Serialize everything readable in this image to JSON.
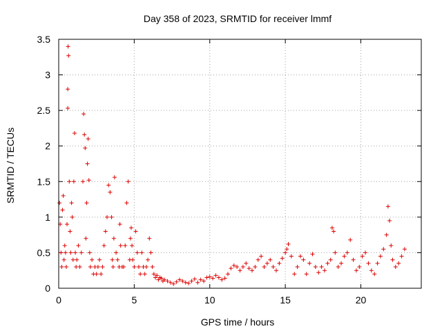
{
  "chart_data": {
    "type": "scatter",
    "title": "Day 358 of 2023, SRMTID for receiver lmmf",
    "xlabel": "GPS time / hours",
    "ylabel": "SRMTID / TECUs",
    "xlim": [
      0,
      24
    ],
    "ylim": [
      0,
      3.5
    ],
    "xticks": [
      0,
      5,
      10,
      15,
      20
    ],
    "yticks": [
      0,
      0.5,
      1,
      1.5,
      2,
      2.5,
      3,
      3.5
    ],
    "xtick_labels": [
      "0",
      "5",
      "10",
      "15",
      "20"
    ],
    "ytick_labels": [
      "0",
      "0.5",
      "1",
      "1.5",
      "2",
      "2.5",
      "3",
      "3.5"
    ],
    "grid": true,
    "marker": "plus",
    "color": "#dd0000",
    "series": [
      {
        "name": "SRMTID",
        "x": [
          0.05,
          0.1,
          0.15,
          0.2,
          0.25,
          0.3,
          0.35,
          0.4,
          0.45,
          0.5,
          0.55,
          0.6,
          0.6,
          0.62,
          0.65,
          0.7,
          0.75,
          0.8,
          0.85,
          0.9,
          0.95,
          1.0,
          1.05,
          1.1,
          1.15,
          1.2,
          1.3,
          1.4,
          1.5,
          1.6,
          1.65,
          1.7,
          1.75,
          1.8,
          1.85,
          1.9,
          1.95,
          2.0,
          2.05,
          2.1,
          2.2,
          2.3,
          2.4,
          2.5,
          2.6,
          2.7,
          2.8,
          2.9,
          3.0,
          3.1,
          3.2,
          3.3,
          3.4,
          3.5,
          3.55,
          3.6,
          3.65,
          3.7,
          3.8,
          3.9,
          4.0,
          4.05,
          4.1,
          4.2,
          4.3,
          4.4,
          4.5,
          4.6,
          4.7,
          4.75,
          4.8,
          4.85,
          4.9,
          5.0,
          5.1,
          5.2,
          5.3,
          5.4,
          5.5,
          5.6,
          5.7,
          5.8,
          5.9,
          6.0,
          6.1,
          6.2,
          6.3,
          6.4,
          6.5,
          6.6,
          6.7,
          6.8,
          6.9,
          7.0,
          7.2,
          7.4,
          7.6,
          7.8,
          8.0,
          8.2,
          8.4,
          8.6,
          8.8,
          9.0,
          9.2,
          9.4,
          9.6,
          9.8,
          10.0,
          10.2,
          10.4,
          10.6,
          10.8,
          11.0,
          11.2,
          11.4,
          11.6,
          11.8,
          12.0,
          12.2,
          12.4,
          12.6,
          12.8,
          13.0,
          13.2,
          13.4,
          13.6,
          13.8,
          14.0,
          14.2,
          14.4,
          14.6,
          14.8,
          15.0,
          15.1,
          15.2,
          15.4,
          15.6,
          15.8,
          16.0,
          16.2,
          16.4,
          16.6,
          16.8,
          17.0,
          17.2,
          17.4,
          17.6,
          17.8,
          18.0,
          18.1,
          18.2,
          18.3,
          18.5,
          18.7,
          18.9,
          19.1,
          19.3,
          19.5,
          19.7,
          19.9,
          20.1,
          20.3,
          20.5,
          20.7,
          20.9,
          21.1,
          21.3,
          21.5,
          21.7,
          21.8,
          21.9,
          22.0,
          22.1,
          22.3,
          22.5,
          22.7,
          22.9
        ],
        "y": [
          1.2,
          0.9,
          0.5,
          0.3,
          1.1,
          1.3,
          0.4,
          0.6,
          0.5,
          0.3,
          0.9,
          2.53,
          2.8,
          3.4,
          3.27,
          1.5,
          0.8,
          0.5,
          1.2,
          1.0,
          0.4,
          1.5,
          2.18,
          0.5,
          0.3,
          0.4,
          0.6,
          0.3,
          0.5,
          1.5,
          2.45,
          2.16,
          1.97,
          0.7,
          1.2,
          1.75,
          2.1,
          1.52,
          0.5,
          0.3,
          0.4,
          0.2,
          0.3,
          0.2,
          0.3,
          0.4,
          0.2,
          0.3,
          0.6,
          0.8,
          1.0,
          1.45,
          1.35,
          1.0,
          0.4,
          0.3,
          0.7,
          1.56,
          0.5,
          0.4,
          0.3,
          0.9,
          0.6,
          0.3,
          0.3,
          0.6,
          1.2,
          1.5,
          0.4,
          0.7,
          0.85,
          0.6,
          0.4,
          0.3,
          0.8,
          0.5,
          0.3,
          0.2,
          0.5,
          0.3,
          0.2,
          0.3,
          0.4,
          0.7,
          0.5,
          0.3,
          0.2,
          0.15,
          0.18,
          0.12,
          0.15,
          0.14,
          0.1,
          0.12,
          0.1,
          0.08,
          0.06,
          0.09,
          0.12,
          0.1,
          0.08,
          0.07,
          0.1,
          0.13,
          0.08,
          0.12,
          0.1,
          0.15,
          0.16,
          0.14,
          0.18,
          0.15,
          0.12,
          0.14,
          0.2,
          0.28,
          0.32,
          0.3,
          0.25,
          0.3,
          0.35,
          0.28,
          0.25,
          0.3,
          0.4,
          0.45,
          0.3,
          0.35,
          0.4,
          0.3,
          0.25,
          0.35,
          0.42,
          0.5,
          0.55,
          0.62,
          0.45,
          0.2,
          0.3,
          0.45,
          0.4,
          0.2,
          0.35,
          0.48,
          0.3,
          0.22,
          0.3,
          0.25,
          0.35,
          0.4,
          0.85,
          0.8,
          0.5,
          0.3,
          0.35,
          0.45,
          0.5,
          0.68,
          0.4,
          0.25,
          0.3,
          0.45,
          0.5,
          0.35,
          0.25,
          0.2,
          0.35,
          0.45,
          0.55,
          0.75,
          1.15,
          0.95,
          0.6,
          0.4,
          0.3,
          0.35,
          0.45,
          0.55
        ]
      }
    ]
  }
}
